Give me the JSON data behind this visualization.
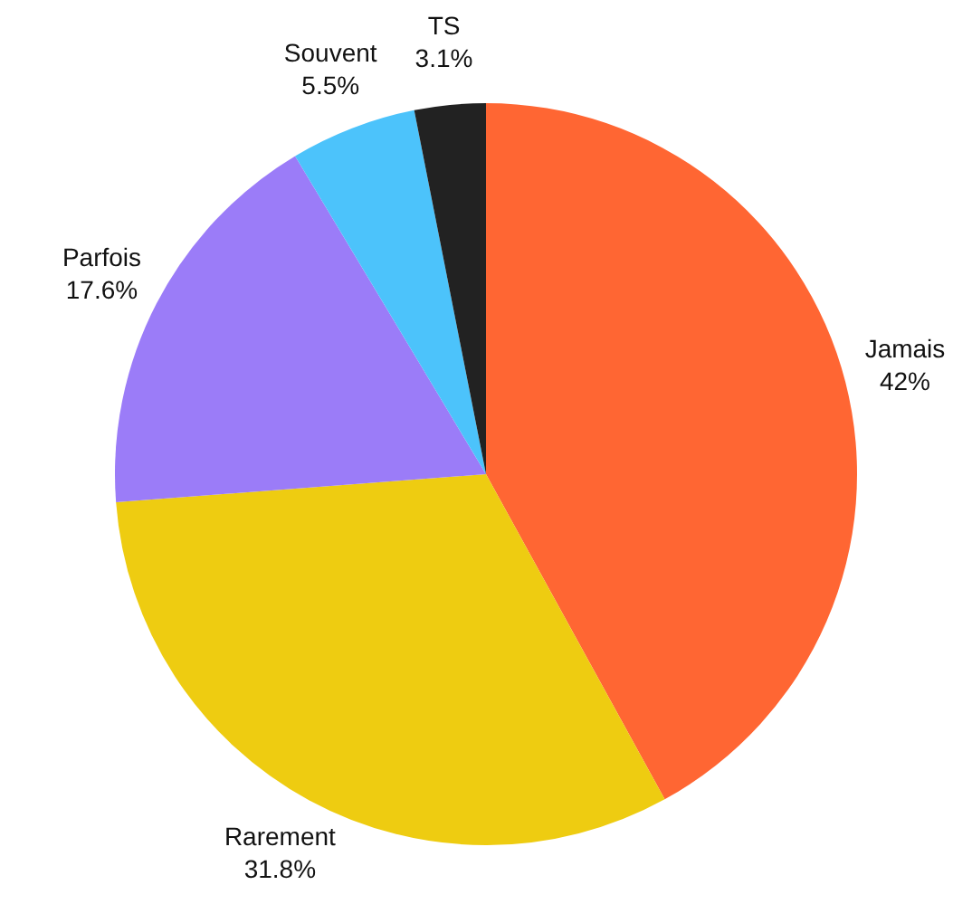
{
  "chart_data": {
    "type": "pie",
    "categories": [
      "Jamais",
      "Rarement",
      "Parfois",
      "Souvent",
      "TS"
    ],
    "values": [
      42,
      31.8,
      17.6,
      5.5,
      3.1
    ],
    "value_labels": [
      "42%",
      "31.8%",
      "17.6%",
      "5.5%",
      "3.1%"
    ],
    "colors": [
      "#ff6633",
      "#eecc11",
      "#9b7cf8",
      "#4cc3fb",
      "#222222"
    ],
    "legend": false
  }
}
